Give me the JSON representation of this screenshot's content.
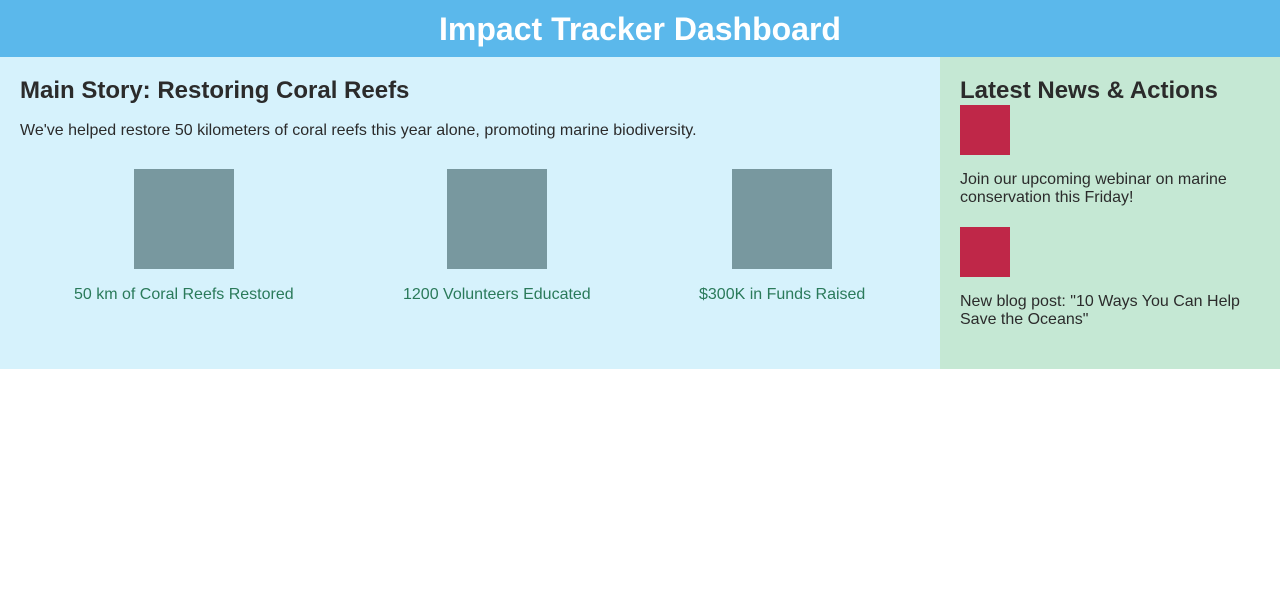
{
  "header": {
    "title": "Impact Tracker Dashboard"
  },
  "main": {
    "title": "Main Story: Restoring Coral Reefs",
    "summary": "We've helped restore 50 kilometers of coral reefs this year alone, promoting marine biodiversity.",
    "stats": [
      {
        "label": "50 km of Coral Reefs Restored"
      },
      {
        "label": "1200 Volunteers Educated"
      },
      {
        "label": "$300K in Funds Raised"
      }
    ]
  },
  "sidebar": {
    "title": "Latest News & Actions",
    "items": [
      {
        "text": "Join our upcoming webinar on marine conservation this Friday!"
      },
      {
        "text": "New blog post: \"10 Ways You Can Help Save the Oceans\""
      }
    ]
  },
  "colors": {
    "header_bg": "#5bb8eb",
    "main_bg": "#d6f2fc",
    "sidebar_bg": "#c5e8d4",
    "stat_box": "#78989f",
    "stat_label": "#2a7a5a",
    "news_thumb": "#bf2748"
  }
}
